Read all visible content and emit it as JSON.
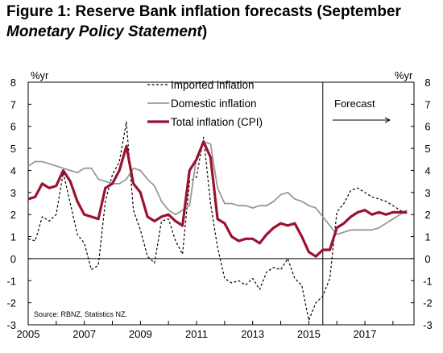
{
  "title": {
    "prefix": "Figure 1: Reserve Bank inflation forecasts (September",
    "italic": "Monetary Policy Statement",
    "suffix": ")"
  },
  "chart_data": {
    "type": "line",
    "ylabel_left": "%yr",
    "ylabel_right": "%yr",
    "ylim": [
      -3,
      8
    ],
    "yticks": [
      -3,
      -2,
      -1,
      0,
      1,
      2,
      3,
      4,
      5,
      6,
      7,
      8
    ],
    "xlim": [
      2005,
      2018.75
    ],
    "xtick_labels": [
      "2005",
      "2007",
      "2009",
      "2011",
      "2013",
      "2015",
      "2017"
    ],
    "xtick_values": [
      2005,
      2007,
      2009,
      2011,
      2013,
      2015,
      2017
    ],
    "forecast_start": 2015.5,
    "forecast_label": "Forecast",
    "source": "Source: RBNZ, Statistics NZ.",
    "legend_position": "top-center",
    "series": [
      {
        "name": "Imported inflation",
        "color": "#000000",
        "style": "dashed",
        "x": [
          2005.0,
          2005.25,
          2005.5,
          2005.75,
          2006.0,
          2006.25,
          2006.5,
          2006.75,
          2007.0,
          2007.25,
          2007.5,
          2007.75,
          2008.0,
          2008.25,
          2008.5,
          2008.75,
          2009.0,
          2009.25,
          2009.5,
          2009.75,
          2010.0,
          2010.25,
          2010.5,
          2010.75,
          2011.0,
          2011.25,
          2011.5,
          2011.75,
          2012.0,
          2012.25,
          2012.5,
          2012.75,
          2013.0,
          2013.25,
          2013.5,
          2013.75,
          2014.0,
          2014.25,
          2014.5,
          2014.75,
          2015.0,
          2015.25,
          2015.5,
          2015.75,
          2016.0,
          2016.25,
          2016.5,
          2016.75,
          2017.0,
          2017.25,
          2017.5,
          2017.75,
          2018.0,
          2018.25,
          2018.5
        ],
        "y": [
          0.9,
          0.8,
          1.9,
          1.7,
          2.0,
          3.9,
          2.5,
          1.1,
          0.7,
          -0.5,
          -0.3,
          2.6,
          3.8,
          4.4,
          6.2,
          2.2,
          1.3,
          0.1,
          -0.2,
          1.7,
          1.8,
          0.8,
          0.2,
          3.5,
          3.7,
          5.5,
          2.5,
          0.5,
          -0.9,
          -1.1,
          -1.0,
          -1.2,
          -0.9,
          -1.4,
          -0.6,
          -0.4,
          -0.5,
          0.0,
          -0.9,
          -1.2,
          -2.8,
          -2.0,
          -1.7,
          -0.9,
          2.1,
          2.5,
          3.1,
          3.2,
          3.0,
          2.8,
          2.7,
          2.6,
          2.4,
          2.2,
          2.0
        ]
      },
      {
        "name": "Domestic inflation",
        "color": "#999999",
        "style": "solid",
        "x": [
          2005.0,
          2005.25,
          2005.5,
          2005.75,
          2006.0,
          2006.25,
          2006.5,
          2006.75,
          2007.0,
          2007.25,
          2007.5,
          2007.75,
          2008.0,
          2008.25,
          2008.5,
          2008.75,
          2009.0,
          2009.25,
          2009.5,
          2009.75,
          2010.0,
          2010.25,
          2010.5,
          2010.75,
          2011.0,
          2011.25,
          2011.5,
          2011.75,
          2012.0,
          2012.25,
          2012.5,
          2012.75,
          2013.0,
          2013.25,
          2013.5,
          2013.75,
          2014.0,
          2014.25,
          2014.5,
          2014.75,
          2015.0,
          2015.25,
          2015.5,
          2015.75,
          2016.0,
          2016.25,
          2016.5,
          2016.75,
          2017.0,
          2017.25,
          2017.5,
          2017.75,
          2018.0,
          2018.25,
          2018.5
        ],
        "y": [
          4.2,
          4.4,
          4.4,
          4.3,
          4.2,
          4.1,
          4.0,
          3.9,
          4.1,
          4.1,
          3.6,
          3.5,
          3.4,
          3.4,
          3.6,
          4.1,
          4.0,
          3.6,
          3.3,
          2.6,
          2.2,
          2.0,
          2.2,
          2.4,
          4.6,
          5.3,
          5.2,
          3.2,
          2.5,
          2.5,
          2.4,
          2.4,
          2.3,
          2.4,
          2.4,
          2.6,
          2.9,
          3.0,
          2.7,
          2.6,
          2.4,
          2.3,
          1.9,
          1.5,
          1.1,
          1.2,
          1.3,
          1.3,
          1.3,
          1.3,
          1.4,
          1.6,
          1.8,
          2.0,
          2.2
        ]
      },
      {
        "name": "Total inflation (CPI)",
        "color": "#9b1230",
        "style": "solid-thick",
        "x": [
          2005.0,
          2005.25,
          2005.5,
          2005.75,
          2006.0,
          2006.25,
          2006.5,
          2006.75,
          2007.0,
          2007.25,
          2007.5,
          2007.75,
          2008.0,
          2008.25,
          2008.5,
          2008.75,
          2009.0,
          2009.25,
          2009.5,
          2009.75,
          2010.0,
          2010.25,
          2010.5,
          2010.75,
          2011.0,
          2011.25,
          2011.5,
          2011.75,
          2012.0,
          2012.25,
          2012.5,
          2012.75,
          2013.0,
          2013.25,
          2013.5,
          2013.75,
          2014.0,
          2014.25,
          2014.5,
          2014.75,
          2015.0,
          2015.25,
          2015.5,
          2015.75,
          2016.0,
          2016.25,
          2016.5,
          2016.75,
          2017.0,
          2017.25,
          2017.5,
          2017.75,
          2018.0,
          2018.25,
          2018.5
        ],
        "y": [
          2.7,
          2.8,
          3.4,
          3.2,
          3.3,
          4.0,
          3.5,
          2.6,
          2.0,
          1.9,
          1.8,
          3.2,
          3.4,
          4.0,
          5.1,
          3.4,
          3.0,
          1.9,
          1.7,
          1.9,
          2.0,
          1.7,
          1.5,
          4.0,
          4.5,
          5.3,
          4.6,
          1.8,
          1.6,
          1.0,
          0.8,
          0.9,
          0.9,
          0.7,
          1.1,
          1.4,
          1.6,
          1.5,
          1.6,
          1.0,
          0.3,
          0.1,
          0.4,
          0.4,
          1.4,
          1.6,
          1.9,
          2.1,
          2.2,
          2.0,
          2.1,
          2.0,
          2.1,
          2.1,
          2.1
        ]
      }
    ]
  }
}
